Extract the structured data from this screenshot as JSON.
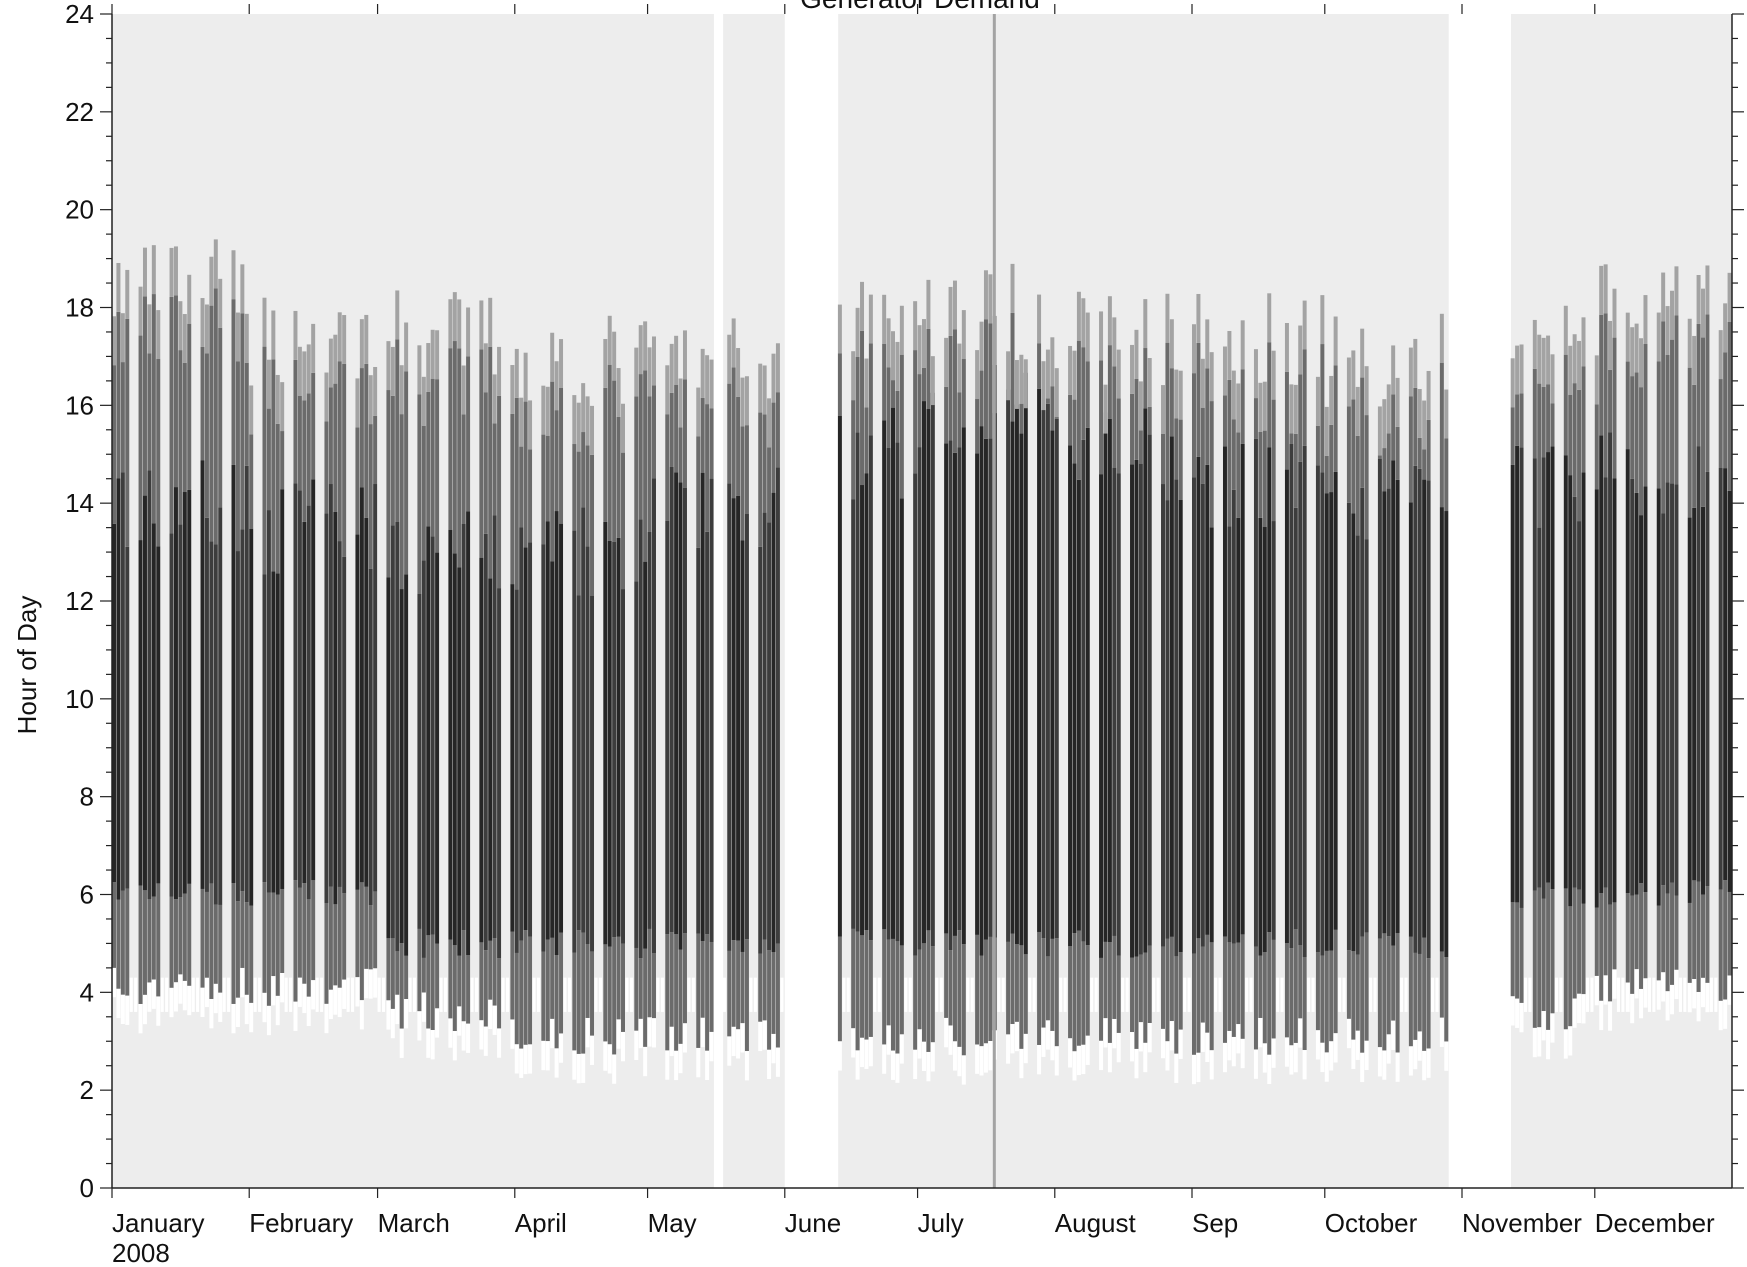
{
  "chart_data": {
    "type": "heatmap",
    "title": "Generator Demand",
    "ylabel": "Hour of Day",
    "xlabel": "",
    "year_label": "2008",
    "ylim": [
      0,
      24
    ],
    "xlim": [
      "2008-01-01",
      "2008-12-31"
    ],
    "y_ticks": [
      "0",
      "2",
      "4",
      "6",
      "8",
      "10",
      "12",
      "14",
      "16",
      "18",
      "20",
      "22",
      "24"
    ],
    "x_ticks": [
      {
        "label": "January",
        "date": "2008-01-01"
      },
      {
        "label": "February",
        "date": "2008-02-01"
      },
      {
        "label": "March",
        "date": "2008-03-01"
      },
      {
        "label": "April",
        "date": "2008-04-01"
      },
      {
        "label": "May",
        "date": "2008-05-01"
      },
      {
        "label": "June",
        "date": "2008-06-01"
      },
      {
        "label": "July",
        "date": "2008-07-01"
      },
      {
        "label": "August",
        "date": "2008-08-01"
      },
      {
        "label": "Sep",
        "date": "2008-09-01"
      },
      {
        "label": "October",
        "date": "2008-10-01"
      },
      {
        "label": "November",
        "date": "2008-11-01"
      },
      {
        "label": "December",
        "date": "2008-12-01"
      }
    ],
    "colors": {
      "background": "#ededed",
      "no_data": "#ffffff",
      "low": "#a3a3a3",
      "medium": "#6b6b6b",
      "high": "#3d3d3d",
      "peak": "#262626"
    },
    "monthly_profile": [
      {
        "month": "January",
        "start_hour": 4.5,
        "core_start": 6.0,
        "core_end": 14.0,
        "end_hour": 18.0
      },
      {
        "month": "February",
        "start_hour": 4.5,
        "core_start": 6.0,
        "core_end": 13.5,
        "end_hour": 17.0
      },
      {
        "month": "March",
        "start_hour": 4.0,
        "core_start": 5.0,
        "core_end": 13.0,
        "end_hour": 17.0
      },
      {
        "month": "April",
        "start_hour": 3.5,
        "core_start": 5.0,
        "core_end": 13.0,
        "end_hour": 16.5
      },
      {
        "month": "May",
        "start_hour": 3.5,
        "core_start": 5.0,
        "core_end": 14.0,
        "end_hour": 16.5
      },
      {
        "month": "June",
        "start_hour": 3.5,
        "core_start": 5.0,
        "core_end": 15.0,
        "end_hour": 17.5
      },
      {
        "month": "July",
        "start_hour": 3.5,
        "core_start": 5.0,
        "core_end": 16.0,
        "end_hour": 17.5
      },
      {
        "month": "August",
        "start_hour": 3.5,
        "core_start": 5.0,
        "core_end": 15.0,
        "end_hour": 17.0
      },
      {
        "month": "Sep",
        "start_hour": 3.5,
        "core_start": 5.0,
        "core_end": 14.5,
        "end_hour": 17.0
      },
      {
        "month": "October",
        "start_hour": 3.5,
        "core_start": 5.0,
        "core_end": 14.0,
        "end_hour": 16.5
      },
      {
        "month": "November",
        "start_hour": 4.0,
        "core_start": 6.0,
        "core_end": 14.5,
        "end_hour": 17.0
      },
      {
        "month": "December",
        "start_hour": 4.5,
        "core_start": 6.0,
        "core_end": 14.5,
        "end_hour": 17.5
      }
    ],
    "no_data_periods": [
      {
        "from": "2008-05-16",
        "to": "2008-05-17"
      },
      {
        "from": "2008-06-01",
        "to": "2008-06-12"
      },
      {
        "from": "2008-10-29",
        "to": "2008-11-11"
      }
    ],
    "grid": false,
    "legend": "none"
  }
}
